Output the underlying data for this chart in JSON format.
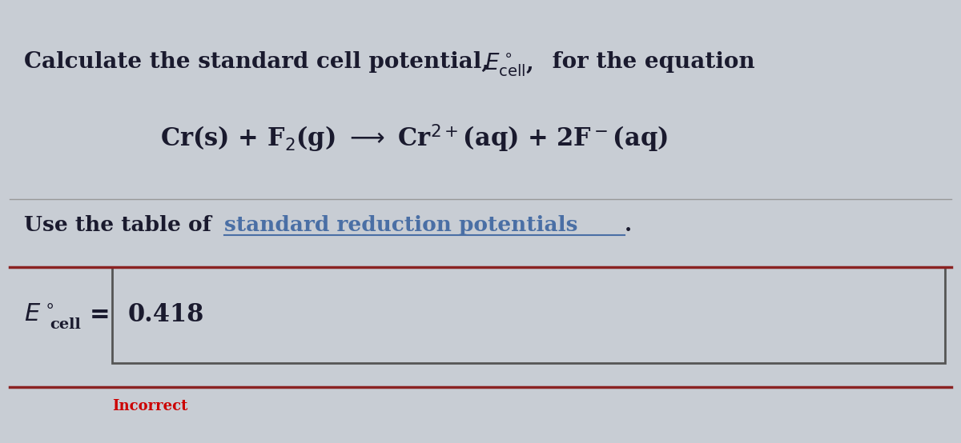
{
  "background_color": "#c8cdd4",
  "title_line": "Calculate the standard cell potential, ε, for the equation",
  "equation": "Cr(s) + F₂(g) → Cr²⁺(aq) + 2F⁻(aq)",
  "use_table_text": "Use the table of ",
  "link_text": "standard reduction potentials",
  "answer_label": "E",
  "answer_subscript": "cell",
  "answer_value": "0.418",
  "incorrect_text": "Incorrect",
  "text_color": "#1a1a2e",
  "link_color": "#4a6fa5",
  "incorrect_color": "#cc0000",
  "box_border_color": "#8b2222",
  "box_bg_color": "#c8cdd4"
}
